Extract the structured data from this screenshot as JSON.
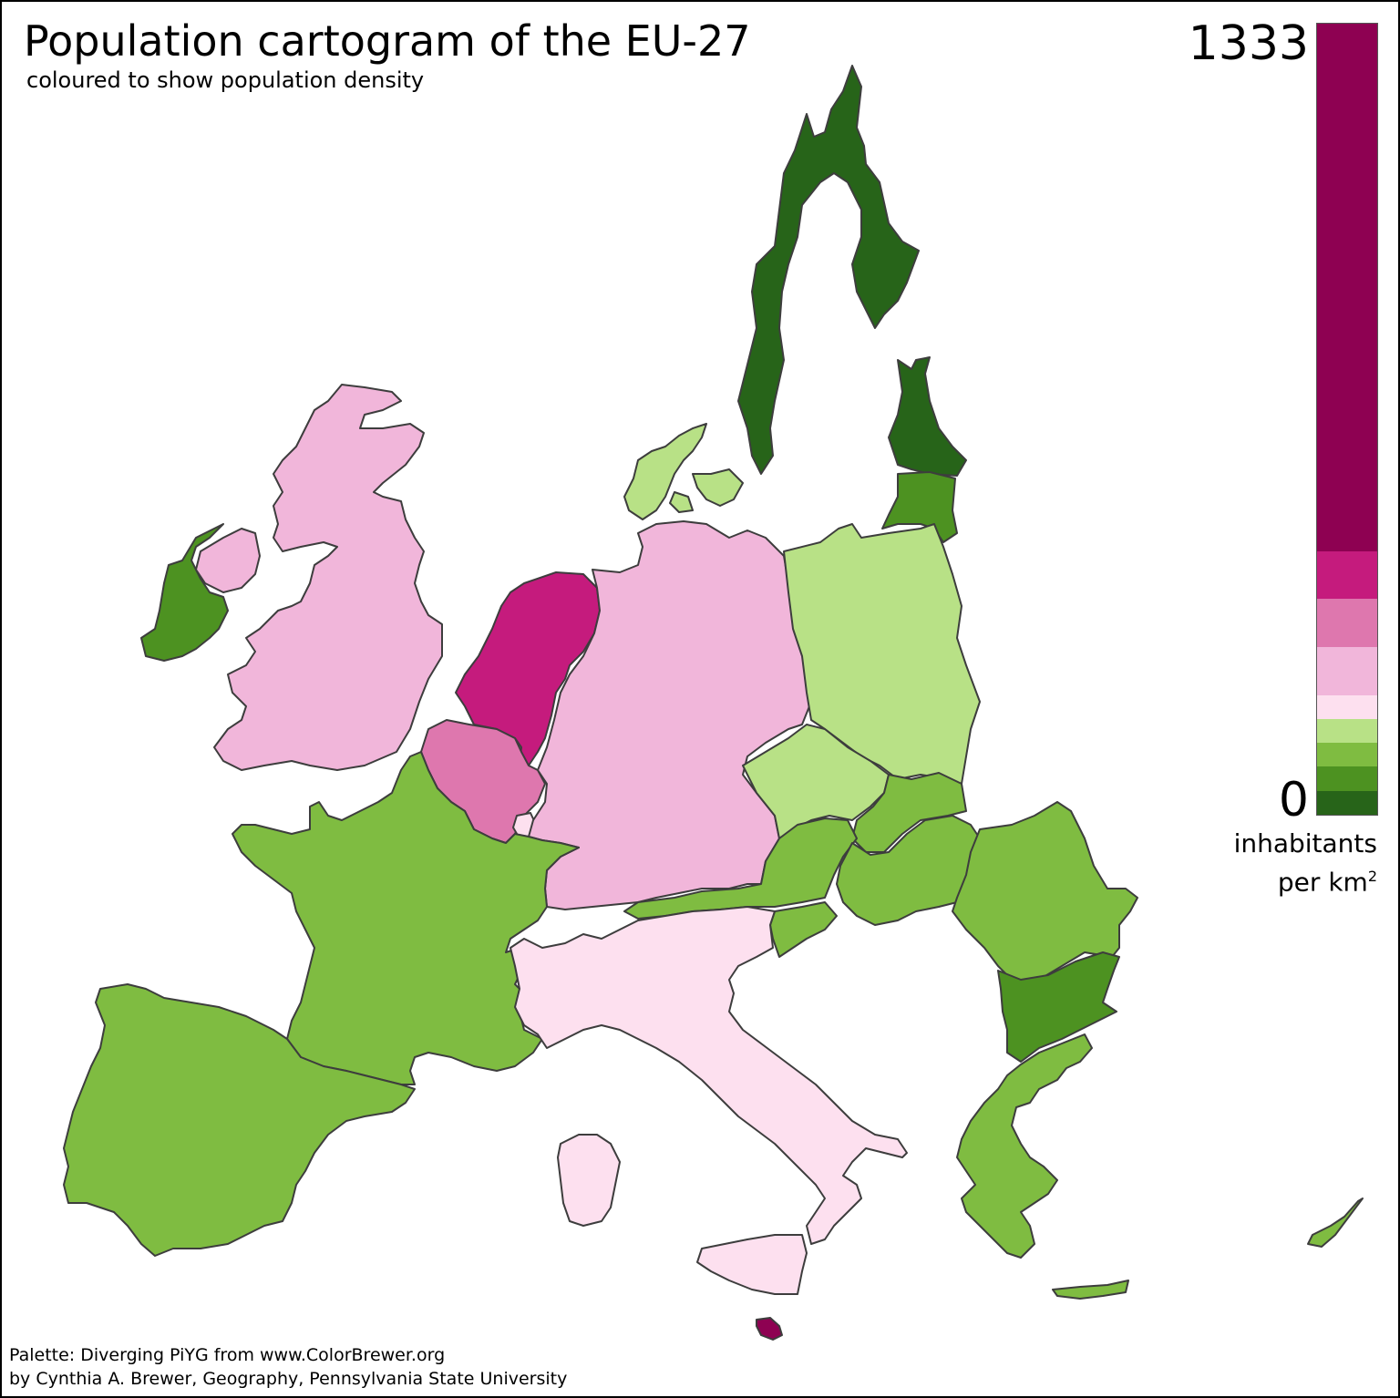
{
  "title": "Population cartogram of the EU-27",
  "subtitle": "coloured to show population density",
  "legend": {
    "max_label": "1333",
    "min_label": "0",
    "unit_line1": "inhabitants",
    "unit_line2_prefix": "per km",
    "unit_superscript": "2",
    "bands": [
      {
        "color": "#8e0152",
        "weight": 11
      },
      {
        "color": "#c51b7d",
        "weight": 1
      },
      {
        "color": "#de77ae",
        "weight": 1
      },
      {
        "color": "#f1b6da",
        "weight": 1
      },
      {
        "color": "#fde0ef",
        "weight": 0.5
      },
      {
        "color": "#b8e186",
        "weight": 0.5
      },
      {
        "color": "#7fbc41",
        "weight": 0.5
      },
      {
        "color": "#4d9221",
        "weight": 0.5
      },
      {
        "color": "#276419",
        "weight": 0.5
      }
    ]
  },
  "credits": {
    "line1": "Palette: Diverging PiYG from www.ColorBrewer.org",
    "line2": "by Cynthia A. Brewer, Geography, Pennsylvania State University"
  },
  "regions": [
    {
      "name": "finland-sweden",
      "color": "#276419"
    },
    {
      "name": "estonia-latvia",
      "color": "#276419"
    },
    {
      "name": "lithuania",
      "color": "#4d9221"
    },
    {
      "name": "ireland",
      "color": "#4d9221"
    },
    {
      "name": "united-kingdom",
      "color": "#f1b6da"
    },
    {
      "name": "denmark",
      "color": "#b8e186"
    },
    {
      "name": "netherlands",
      "color": "#c51b7d"
    },
    {
      "name": "belgium",
      "color": "#de77ae"
    },
    {
      "name": "luxembourg",
      "color": "#fde0ef"
    },
    {
      "name": "germany",
      "color": "#f1b6da"
    },
    {
      "name": "poland",
      "color": "#b8e186"
    },
    {
      "name": "czech-republic",
      "color": "#b8e186"
    },
    {
      "name": "slovakia",
      "color": "#7fbc41"
    },
    {
      "name": "austria",
      "color": "#7fbc41"
    },
    {
      "name": "hungary",
      "color": "#7fbc41"
    },
    {
      "name": "slovenia",
      "color": "#7fbc41"
    },
    {
      "name": "romania",
      "color": "#7fbc41"
    },
    {
      "name": "bulgaria",
      "color": "#4d9221"
    },
    {
      "name": "greece",
      "color": "#7fbc41"
    },
    {
      "name": "france",
      "color": "#7fbc41"
    },
    {
      "name": "spain-portugal",
      "color": "#7fbc41"
    },
    {
      "name": "italy",
      "color": "#fde0ef"
    },
    {
      "name": "malta",
      "color": "#8e0152"
    },
    {
      "name": "cyprus",
      "color": "#7fbc41"
    }
  ]
}
